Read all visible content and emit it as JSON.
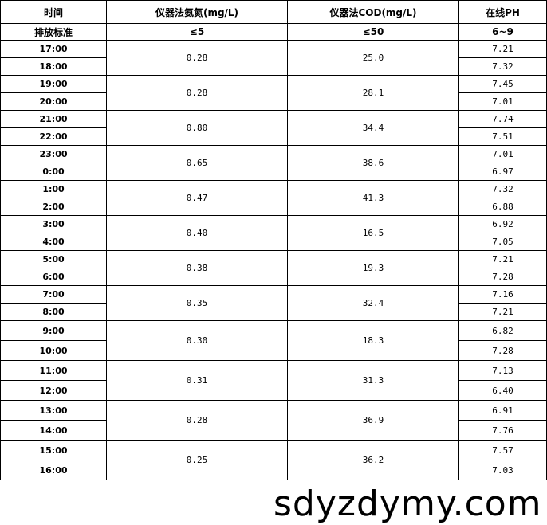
{
  "headers": [
    "时间",
    "仪器法氨氮(mg/L)",
    "仪器法COD(mg/L)",
    "在线PH"
  ],
  "standard": [
    "排放标准",
    "≤5",
    "≤50",
    "6~9"
  ],
  "groups": [
    {
      "times": [
        "17:00",
        "18:00"
      ],
      "ammonia": "0.28",
      "cod": "25.0",
      "ph": [
        "7.21",
        "7.32"
      ]
    },
    {
      "times": [
        "19:00",
        "20:00"
      ],
      "ammonia": "0.28",
      "cod": "28.1",
      "ph": [
        "7.45",
        "7.01"
      ]
    },
    {
      "times": [
        "21:00",
        "22:00"
      ],
      "ammonia": "0.80",
      "cod": "34.4",
      "ph": [
        "7.74",
        "7.51"
      ]
    },
    {
      "times": [
        "23:00",
        "0:00"
      ],
      "ammonia": "0.65",
      "cod": "38.6",
      "ph": [
        "7.01",
        "6.97"
      ]
    },
    {
      "times": [
        "1:00",
        "2:00"
      ],
      "ammonia": "0.47",
      "cod": "41.3",
      "ph": [
        "7.32",
        "6.88"
      ]
    },
    {
      "times": [
        "3:00",
        "4:00"
      ],
      "ammonia": "0.40",
      "cod": "16.5",
      "ph": [
        "6.92",
        "7.05"
      ]
    },
    {
      "times": [
        "5:00",
        "6:00"
      ],
      "ammonia": "0.38",
      "cod": "19.3",
      "ph": [
        "7.21",
        "7.28"
      ]
    },
    {
      "times": [
        "7:00",
        "8:00"
      ],
      "ammonia": "0.35",
      "cod": "32.4",
      "ph": [
        "7.16",
        "7.21"
      ]
    },
    {
      "times": [
        "9:00",
        "10:00"
      ],
      "ammonia": "0.30",
      "cod": "18.3",
      "ph": [
        "6.82",
        "7.28"
      ]
    },
    {
      "times": [
        "11:00",
        "12:00"
      ],
      "ammonia": "0.31",
      "cod": "31.3",
      "ph": [
        "7.13",
        "6.40"
      ]
    },
    {
      "times": [
        "13:00",
        "14:00"
      ],
      "ammonia": "0.28",
      "cod": "36.9",
      "ph": [
        "6.91",
        "7.76"
      ]
    },
    {
      "times": [
        "15:00",
        "16:00"
      ],
      "ammonia": "0.25",
      "cod": "36.2",
      "ph": [
        "7.57",
        "7.03"
      ]
    }
  ],
  "watermark": "sdyzdymy.com"
}
